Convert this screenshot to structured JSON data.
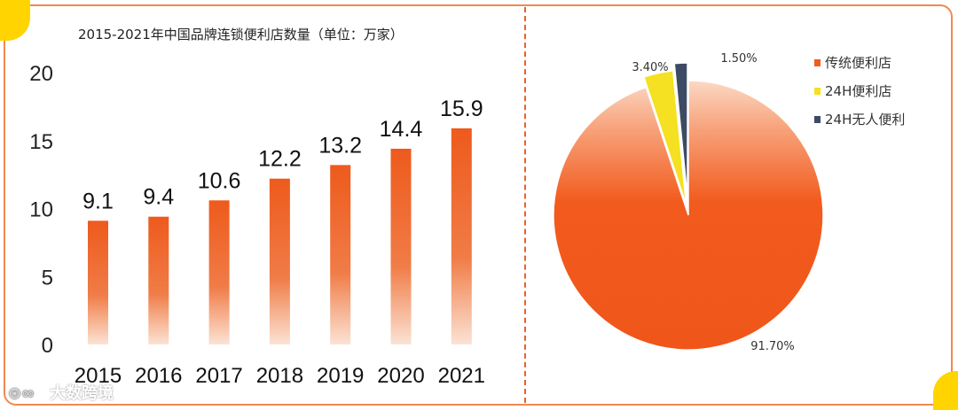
{
  "chart_data": [
    {
      "type": "bar",
      "title": "2015-2021年中国品牌连锁便利店数量（单位：万家）",
      "categories": [
        "2015",
        "2016",
        "2017",
        "2018",
        "2019",
        "2020",
        "2021"
      ],
      "values": [
        9.1,
        9.4,
        10.6,
        12.2,
        13.2,
        14.4,
        15.9
      ],
      "value_labels": [
        "9.1",
        "9.4",
        "10.6",
        "12.2",
        "13.2",
        "14.4",
        "15.9"
      ],
      "yticks": [
        "0",
        "5",
        "10",
        "15",
        "20"
      ],
      "ylim": [
        0,
        20
      ],
      "grid": false,
      "bar_color": "#ee5a1c"
    },
    {
      "type": "pie",
      "slices": [
        {
          "label": "传统便利店",
          "value": 91.7,
          "value_label": "91.70%",
          "color": "#f25b1e"
        },
        {
          "label": "24H便利店",
          "value": 3.4,
          "value_label": "3.40%",
          "color": "#f5e021"
        },
        {
          "label": "24H无人便利",
          "value": 1.5,
          "value_label": "1.50%",
          "color": "#3d4a63"
        }
      ],
      "legend_position": "top-right"
    }
  ],
  "watermark": {
    "text": "大数跨境"
  },
  "colors": {
    "accent": "#e8612a",
    "highlight": "#ffd400"
  }
}
